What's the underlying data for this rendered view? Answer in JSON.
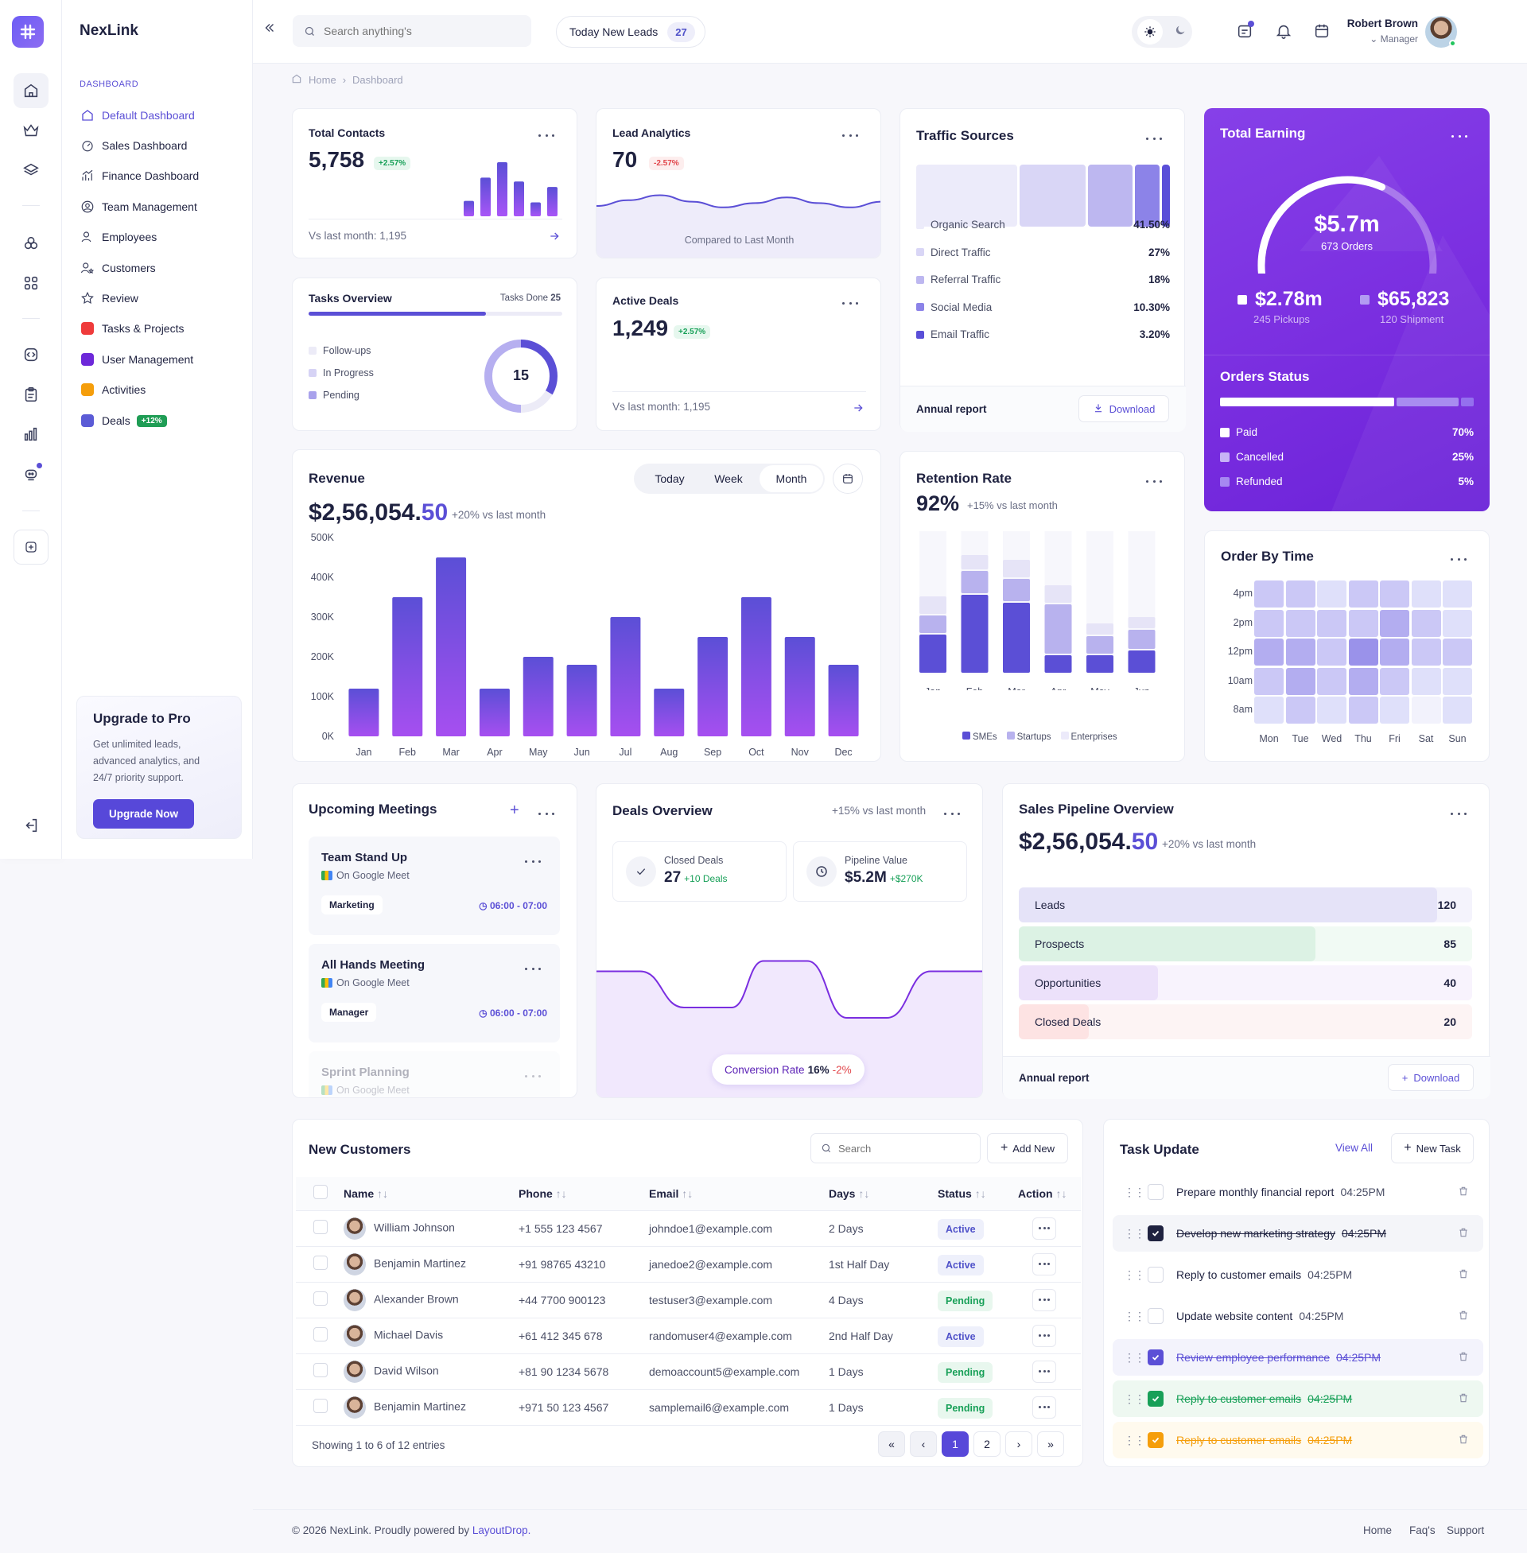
{
  "app": {
    "brand": "NexLink"
  },
  "sidebar": {
    "section": "DASHBOARD",
    "items": [
      {
        "label": "Default Dashboard"
      },
      {
        "label": "Sales Dashboard"
      },
      {
        "label": "Finance Dashboard"
      },
      {
        "label": "Team Management"
      },
      {
        "label": "Employees"
      },
      {
        "label": "Customers"
      },
      {
        "label": "Review"
      },
      {
        "label": "Tasks & Projects"
      },
      {
        "label": "User Management"
      },
      {
        "label": "Activities"
      },
      {
        "label": "Deals",
        "badge": "+12%"
      }
    ],
    "colors": {
      "tasks": "#ef3b3b",
      "users": "#6d28d9",
      "activities": "#f59e0b",
      "deals": "#5b5bd6"
    },
    "upgrade": {
      "title": "Upgrade to Pro",
      "text_lines": [
        "Get unlimited leads,",
        "advanced analytics, and",
        "24/7 priority support."
      ],
      "button": "Upgrade Now"
    }
  },
  "header": {
    "search_placeholder": "Search anything's",
    "leads_label": "Today New Leads",
    "leads_count": "27",
    "user_name": "Robert Brown",
    "user_role": "Manager"
  },
  "breadcrumb": {
    "home": "Home",
    "current": "Dashboard"
  },
  "total_contacts": {
    "title": "Total Contacts",
    "value": "5,758",
    "change": "+2.57%",
    "footer": "Vs last month: 1,195",
    "bars": [
      20,
      50,
      70,
      45,
      18,
      38
    ]
  },
  "lead_analytics": {
    "title": "Lead Analytics",
    "value": "70",
    "change": "-2.57%",
    "footer": "Compared to Last Month"
  },
  "traffic": {
    "title": "Traffic Sources",
    "sources": [
      {
        "name": "Organic Search",
        "value": "41.50%",
        "color": "#ecebfa"
      },
      {
        "name": "Direct Traffic",
        "value": "27%",
        "color": "#d9d6f6"
      },
      {
        "name": "Referral Traffic",
        "value": "18%",
        "color": "#bdb7f0"
      },
      {
        "name": "Social Media",
        "value": "10.30%",
        "color": "#8c83e8"
      },
      {
        "name": "Email Traffic",
        "value": "3.20%",
        "color": "#5a4fd8"
      }
    ],
    "annual": "Annual report",
    "download": "Download"
  },
  "total_earning": {
    "title": "Total Earning",
    "value": "$5.7m",
    "orders": "673 Orders",
    "progress": 0.62,
    "left": {
      "value": "$2.78m",
      "label": "245 Pickups"
    },
    "right": {
      "value": "$65,823",
      "label": "120 Shipment"
    },
    "orders_status": {
      "title": "Orders Status",
      "items": [
        {
          "name": "Paid",
          "value": "70%"
        },
        {
          "name": "Cancelled",
          "value": "25%"
        },
        {
          "name": "Refunded",
          "value": "5%"
        }
      ]
    }
  },
  "tasks_overview": {
    "title": "Tasks Overview",
    "done_label": "Tasks Done",
    "done_value": "25",
    "progress": 0.7,
    "legend": [
      {
        "name": "Follow-ups",
        "color": "#ecebf7"
      },
      {
        "name": "In Progress",
        "color": "#d6d3f5"
      },
      {
        "name": "Pending",
        "color": "#a9a2ec"
      }
    ],
    "center": "15"
  },
  "active_deals": {
    "title": "Active Deals",
    "value": "1,249",
    "change": "+2.57%",
    "footer": "Vs last month: 1,195"
  },
  "revenue": {
    "title": "Revenue",
    "value_main": "$2,56,054.",
    "value_dec": "50",
    "change": "+20% vs last month",
    "tabs": [
      "Today",
      "Week",
      "Month"
    ],
    "active_tab": "Month"
  },
  "retention": {
    "title": "Retention Rate",
    "value": "92%",
    "change": "+15% vs last month",
    "legend": [
      "SMEs",
      "Startups",
      "Enterprises"
    ]
  },
  "order_by_time": {
    "title": "Order By Time",
    "rows": [
      "4pm",
      "2pm",
      "12pm",
      "10am",
      "8am"
    ],
    "cols": [
      "Mon",
      "Tue",
      "Wed",
      "Thu",
      "Fri",
      "Sat",
      "Sun"
    ],
    "values": [
      [
        2,
        2,
        1,
        2,
        2,
        1,
        1
      ],
      [
        2,
        2,
        2,
        2,
        3,
        2,
        1
      ],
      [
        3,
        3,
        2,
        4,
        3,
        2,
        2
      ],
      [
        2,
        3,
        2,
        3,
        2,
        1,
        1
      ],
      [
        1,
        2,
        1,
        2,
        1,
        0,
        1
      ]
    ]
  },
  "meetings": {
    "title": "Upcoming Meetings",
    "items": [
      {
        "title": "Team Stand Up",
        "platform": "On Google Meet",
        "tag": "Marketing",
        "time": "06:00 - 07:00"
      },
      {
        "title": "All Hands Meeting",
        "platform": "On Google Meet",
        "tag": "Manager",
        "time": "06:00 - 07:00"
      },
      {
        "title": "Sprint Planning",
        "platform": "On Google Meet"
      }
    ]
  },
  "deals_overview": {
    "title": "Deals Overview",
    "change": "+15% vs last month",
    "closed": {
      "label": "Closed Deals",
      "value": "27",
      "delta": "+10 Deals"
    },
    "pipeline": {
      "label": "Pipeline Value",
      "value": "$5.2M",
      "delta": "+$270K"
    },
    "conversion_label": "Conversion Rate",
    "conversion_value": "16%",
    "conversion_delta": "-2%"
  },
  "pipeline": {
    "title": "Sales Pipeline Overview",
    "value_main": "$2,56,054.",
    "value_dec": "50",
    "change": "+20% vs last month",
    "stages": [
      {
        "name": "Leads",
        "value": 120,
        "color": "#e5e3f8",
        "track": "#f4f3fc"
      },
      {
        "name": "Prospects",
        "value": 85,
        "color": "#dcf2e4",
        "track": "#f1faf4"
      },
      {
        "name": "Opportunities",
        "value": 40,
        "color": "#ece1fa",
        "track": "#f8f3fd"
      },
      {
        "name": "Closed Deals",
        "value": 20,
        "color": "#fde3e3",
        "track": "#fdf4f4"
      }
    ],
    "max": 130,
    "annual": "Annual report",
    "download": "Download"
  },
  "customers": {
    "title": "New Customers",
    "search_placeholder": "Search",
    "add": "Add New",
    "columns": [
      "Name",
      "Phone",
      "Email",
      "Days",
      "Status",
      "Action"
    ],
    "rows": [
      {
        "name": "William Johnson",
        "phone": "+1 555 123 4567",
        "email": "johndoe1@example.com",
        "days": "2 Days",
        "status": "Active"
      },
      {
        "name": "Benjamin Martinez",
        "phone": "+91 98765 43210",
        "email": "janedoe2@example.com",
        "days": "1st Half Day",
        "status": "Active"
      },
      {
        "name": "Alexander Brown",
        "phone": "+44 7700 900123",
        "email": "testuser3@example.com",
        "days": "4 Days",
        "status": "Pending"
      },
      {
        "name": "Michael Davis",
        "phone": "+61 412 345 678",
        "email": "randomuser4@example.com",
        "days": "2nd Half Day",
        "status": "Active"
      },
      {
        "name": "David Wilson",
        "phone": "+81 90 1234 5678",
        "email": "demoaccount5@example.com",
        "days": "1 Days",
        "status": "Pending"
      },
      {
        "name": "Benjamin Martinez",
        "phone": "+971 50 123 4567",
        "email": "samplemail6@example.com",
        "days": "1 Days",
        "status": "Pending"
      }
    ],
    "showing": "Showing 1 to 6 of 12 entries",
    "pages": [
      "1",
      "2"
    ]
  },
  "task_update": {
    "title": "Task Update",
    "view_all": "View All",
    "new_task": "New Task",
    "items": [
      {
        "label": "Prepare monthly financial report",
        "time": "04:25PM",
        "done": false,
        "tone": "none"
      },
      {
        "label": "Develop new marketing strategy",
        "time": "04:25PM",
        "done": true,
        "tone": "dark"
      },
      {
        "label": "Reply to customer emails",
        "time": "04:25PM",
        "done": false,
        "tone": "none"
      },
      {
        "label": "Update website content",
        "time": "04:25PM",
        "done": false,
        "tone": "none"
      },
      {
        "label": "Review employee performance",
        "time": "04:25PM",
        "done": true,
        "tone": "purple"
      },
      {
        "label": "Reply to customer emails",
        "time": "04:25PM",
        "done": true,
        "tone": "green"
      },
      {
        "label": "Reply to customer emails",
        "time": "04:25PM",
        "done": true,
        "tone": "yellow"
      }
    ]
  },
  "footer": {
    "copyright": "© 2026 NexLink. Proudly powered by",
    "powered": "LayoutDrop.",
    "links": [
      "Home",
      "Faq's",
      "Support"
    ]
  },
  "chart_data": [
    {
      "type": "bar",
      "title": "Revenue",
      "categories": [
        "Jan",
        "Feb",
        "Mar",
        "Apr",
        "May",
        "Jun",
        "Jul",
        "Aug",
        "Sep",
        "Oct",
        "Nov",
        "Dec"
      ],
      "values": [
        120,
        350,
        450,
        120,
        200,
        180,
        300,
        120,
        250,
        350,
        250,
        180
      ],
      "yticks": [
        "0K",
        "100K",
        "200K",
        "300K",
        "400K",
        "500K"
      ],
      "ylim": [
        0,
        500
      ]
    },
    {
      "type": "bar",
      "title": "Retention Rate",
      "categories": [
        "Jan",
        "Feb",
        "Mar",
        "Apr",
        "May",
        "Jun"
      ],
      "series": [
        {
          "name": "SMEs",
          "values": [
            25,
            50,
            45,
            12,
            12,
            15
          ]
        },
        {
          "name": "Startups",
          "values": [
            12,
            15,
            15,
            32,
            12,
            13
          ]
        },
        {
          "name": "Enterprises",
          "values": [
            12,
            10,
            12,
            12,
            8,
            8
          ]
        }
      ],
      "ylim": [
        0,
        100
      ]
    },
    {
      "type": "area",
      "title": "Lead Analytics",
      "values": [
        40,
        48,
        55,
        46,
        38,
        44,
        52,
        44,
        38,
        46
      ]
    },
    {
      "type": "area",
      "title": "Deals Overview",
      "values": [
        55,
        55,
        20,
        20,
        65,
        65,
        10,
        10,
        55,
        55
      ]
    }
  ]
}
